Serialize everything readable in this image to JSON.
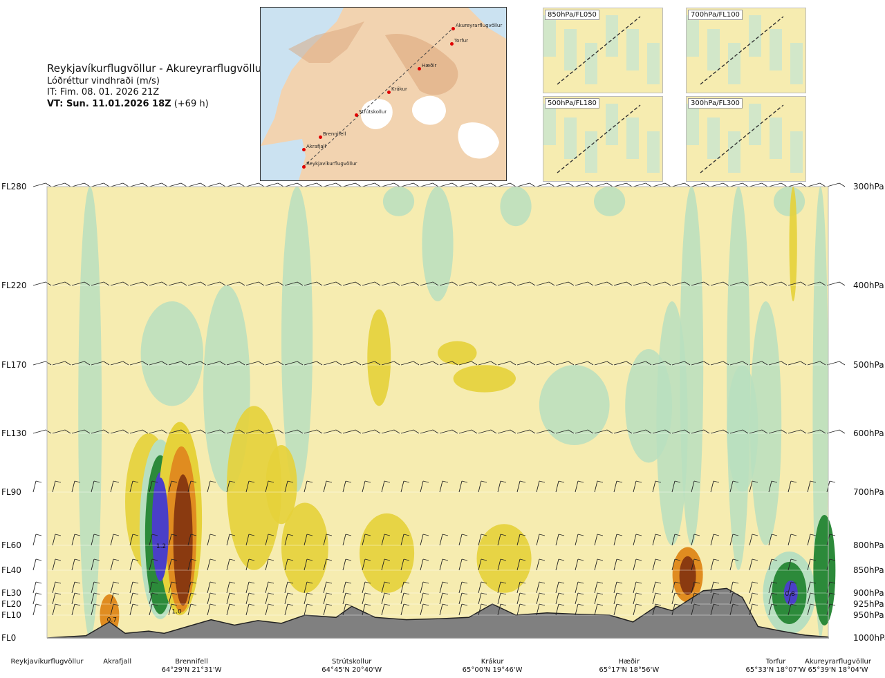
{
  "header": {
    "route": "Reykjavíkurflugvöllur - Akureyrarflugvöllur",
    "variable": "Lóðréttur vindhraði (m/s)",
    "it_label": "IT: Fim. 08. 01. 2026 21Z",
    "vt_label": "VT: Sun. 11.01.2026 18Z",
    "vt_offset": "(+69 h)"
  },
  "route_map": {
    "points": [
      "Akureyrarflugvöllur",
      "Torfur",
      "Hæðir",
      "Krákur",
      "Strútskollur",
      "Brennifell",
      "Akrafjall",
      "Reykjavíkurflugvöllur"
    ]
  },
  "mini_maps": [
    {
      "label": "850hPa/FL050"
    },
    {
      "label": "700hPa/FL100"
    },
    {
      "label": "500hPa/FL180"
    },
    {
      "label": "300hPa/FL300"
    }
  ],
  "chart_data": {
    "type": "heatmap",
    "title": "Lóðréttur vindhraði (m/s)",
    "colors": {
      "strong_down": "#4a3fc8",
      "mod_down": "#2c8a3a",
      "light_down": "#b8dfc0",
      "neutral": "#f6ecb0",
      "light_up": "#e6d23a",
      "mod_up": "#e08c20",
      "strong_up": "#8a3a10",
      "terrain": "#808080"
    },
    "levels_left": [
      {
        "label": "FL280",
        "hpa": 300
      },
      {
        "label": "FL220",
        "hpa": 400
      },
      {
        "label": "FL170",
        "hpa": 500
      },
      {
        "label": "FL130",
        "hpa": 600
      },
      {
        "label": "FL90",
        "hpa": 700
      },
      {
        "label": "FL60",
        "hpa": 800
      },
      {
        "label": "FL40",
        "hpa": 850
      },
      {
        "label": "FL30",
        "hpa": 900
      },
      {
        "label": "FL20",
        "hpa": 925
      },
      {
        "label": "FL10",
        "hpa": 950
      },
      {
        "label": "FL0",
        "hpa": 1000
      }
    ],
    "levels_right": [
      "300hPa",
      "400hPa",
      "500hPa",
      "600hPa",
      "700hPa",
      "800hPa",
      "850hPa",
      "900hPa",
      "925hPa",
      "950hPa",
      "1000hPa"
    ],
    "stations": [
      {
        "name": "Reykjavíkurflugvöllur",
        "coord": "",
        "dist": 0
      },
      {
        "name": "Akrafjall",
        "coord": "",
        "dist": 0.09
      },
      {
        "name": "Brennifell",
        "coord": "64°29'N 21°31'W",
        "dist": 0.185
      },
      {
        "name": "Strútskollur",
        "coord": "64°45'N 20°40'W",
        "dist": 0.39
      },
      {
        "name": "Krákur",
        "coord": "65°00'N 19°46'W",
        "dist": 0.57
      },
      {
        "name": "Hæðir",
        "coord": "65°17'N 18°56'W",
        "dist": 0.745
      },
      {
        "name": "Torfur",
        "coord": "65°33'N 18°07'W",
        "dist": 0.945
      },
      {
        "name": "Akureyrarflugvöllur",
        "coord": "65°39'N 18°04'W",
        "dist": 1.0
      }
    ],
    "annotations": [
      {
        "text": "1.2",
        "dist": 0.145,
        "hpa": 800
      },
      {
        "text": "1.0",
        "dist": 0.165,
        "hpa": 940
      },
      {
        "text": "0.7",
        "dist": 0.082,
        "hpa": 958
      },
      {
        "text": "0.8",
        "dist": 0.95,
        "hpa": 900
      }
    ],
    "terrain_profile": {
      "dist": [
        0,
        0.05,
        0.08,
        0.1,
        0.13,
        0.15,
        0.18,
        0.21,
        0.24,
        0.27,
        0.3,
        0.33,
        0.37,
        0.39,
        0.42,
        0.46,
        0.5,
        0.54,
        0.57,
        0.6,
        0.64,
        0.68,
        0.72,
        0.75,
        0.78,
        0.8,
        0.84,
        0.87,
        0.89,
        0.91,
        0.94,
        0.97,
        1.0
      ],
      "hpa": [
        1000,
        995,
        965,
        990,
        985,
        990,
        975,
        960,
        972,
        962,
        968,
        950,
        955,
        930,
        955,
        960,
        958,
        955,
        925,
        950,
        945,
        948,
        950,
        965,
        930,
        940,
        895,
        890,
        910,
        975,
        985,
        994,
        998
      ]
    }
  }
}
